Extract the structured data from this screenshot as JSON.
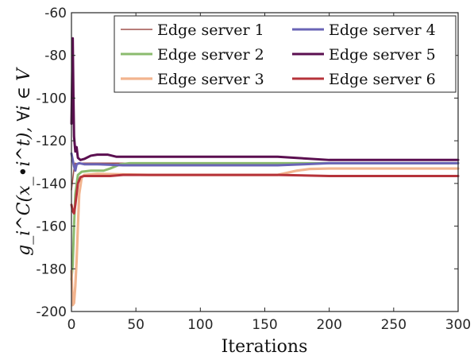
{
  "chart_data": {
    "type": "line",
    "title": "",
    "xlabel": "Iterations",
    "ylabel": "g_i^C(x_•i^t), ∀i ∈ V",
    "xlim": [
      0,
      300
    ],
    "ylim": [
      -200,
      -60
    ],
    "xticks": [
      0,
      50,
      100,
      150,
      200,
      250,
      300
    ],
    "yticks": [
      -200,
      -180,
      -160,
      -140,
      -120,
      -100,
      -80,
      -60
    ],
    "grid": false,
    "legend_position": "top-right",
    "series": [
      {
        "name": "Edge server 1",
        "color": "#a0524d",
        "width": 1.6,
        "points": [
          [
            0,
            -143
          ],
          [
            1,
            -138
          ],
          [
            2,
            -133
          ],
          [
            3,
            -130.5
          ],
          [
            5,
            -131
          ],
          [
            8,
            -130.5
          ],
          [
            15,
            -130.5
          ],
          [
            40,
            -130.5
          ],
          [
            100,
            -130.5
          ],
          [
            200,
            -130.5
          ],
          [
            300,
            -130.5
          ]
        ]
      },
      {
        "name": "Edge server 2",
        "color": "#8bbb6e",
        "width": 3,
        "points": [
          [
            0,
            -185
          ],
          [
            1,
            -178
          ],
          [
            2,
            -160
          ],
          [
            3,
            -145
          ],
          [
            5,
            -136
          ],
          [
            8,
            -134.5
          ],
          [
            15,
            -134
          ],
          [
            25,
            -134
          ],
          [
            30,
            -133
          ],
          [
            38,
            -131
          ],
          [
            45,
            -130.5
          ],
          [
            100,
            -130.5
          ],
          [
            160,
            -130.5
          ],
          [
            200,
            -130.5
          ],
          [
            300,
            -130.5
          ]
        ]
      },
      {
        "name": "Edge server 3",
        "color": "#f2b48e",
        "width": 3.2,
        "points": [
          [
            0,
            -181
          ],
          [
            1,
            -197
          ],
          [
            2,
            -196
          ],
          [
            3,
            -188
          ],
          [
            4,
            -176
          ],
          [
            5,
            -160
          ],
          [
            6,
            -145
          ],
          [
            8,
            -137
          ],
          [
            10,
            -136
          ],
          [
            20,
            -135.5
          ],
          [
            60,
            -136
          ],
          [
            100,
            -136
          ],
          [
            150,
            -136
          ],
          [
            160,
            -136
          ],
          [
            175,
            -134
          ],
          [
            185,
            -133.2
          ],
          [
            200,
            -133
          ],
          [
            300,
            -133
          ]
        ]
      },
      {
        "name": "Edge server 4",
        "color": "#6a64b6",
        "width": 3,
        "points": [
          [
            0,
            -126
          ],
          [
            1,
            -129
          ],
          [
            2,
            -132
          ],
          [
            3,
            -134
          ],
          [
            4,
            -131
          ],
          [
            6,
            -130.5
          ],
          [
            10,
            -131
          ],
          [
            20,
            -131
          ],
          [
            40,
            -131.5
          ],
          [
            80,
            -131.5
          ],
          [
            130,
            -131.5
          ],
          [
            160,
            -131.5
          ],
          [
            180,
            -131
          ],
          [
            200,
            -130.5
          ],
          [
            300,
            -130.5
          ]
        ]
      },
      {
        "name": "Edge server 5",
        "color": "#5b0f50",
        "width": 3,
        "points": [
          [
            0,
            -112
          ],
          [
            1,
            -72
          ],
          [
            1.5,
            -98
          ],
          [
            2,
            -118
          ],
          [
            3,
            -125
          ],
          [
            4,
            -123
          ],
          [
            5,
            -128
          ],
          [
            7,
            -129
          ],
          [
            10,
            -128.5
          ],
          [
            15,
            -127
          ],
          [
            20,
            -126.5
          ],
          [
            28,
            -126.5
          ],
          [
            35,
            -127.5
          ],
          [
            60,
            -127.5
          ],
          [
            160,
            -127.5
          ],
          [
            200,
            -129
          ],
          [
            300,
            -129
          ]
        ]
      },
      {
        "name": "Edge server 6",
        "color": "#b6333a",
        "width": 3,
        "points": [
          [
            0,
            -150
          ],
          [
            1,
            -153
          ],
          [
            2,
            -154
          ],
          [
            3,
            -150
          ],
          [
            4,
            -145
          ],
          [
            5,
            -140
          ],
          [
            7,
            -137
          ],
          [
            10,
            -136.5
          ],
          [
            30,
            -136.5
          ],
          [
            40,
            -136
          ],
          [
            80,
            -136
          ],
          [
            160,
            -136
          ],
          [
            200,
            -136.5
          ],
          [
            300,
            -136.5
          ]
        ]
      }
    ]
  }
}
